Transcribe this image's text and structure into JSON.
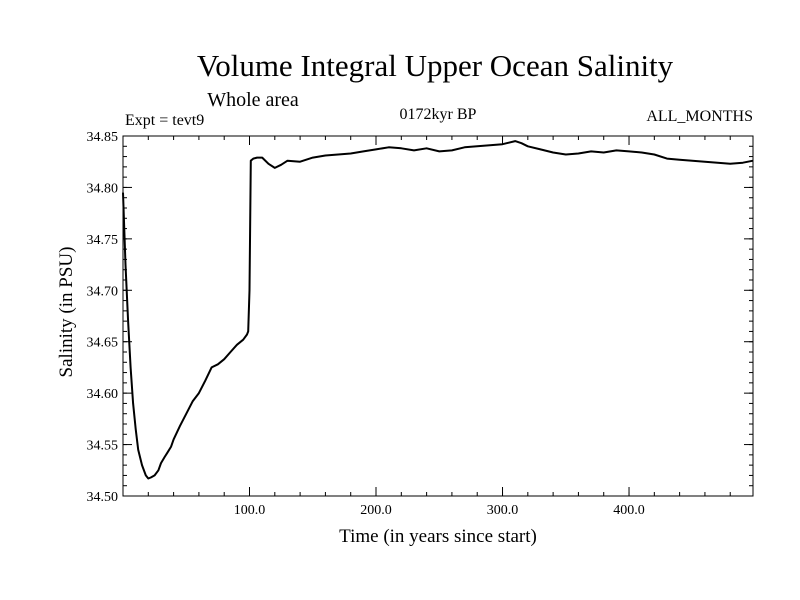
{
  "chart_data": {
    "type": "line",
    "title": "Volume Integral Upper Ocean Salinity",
    "subtitle": "Whole area",
    "annotations": {
      "left": "Expt = tevt9",
      "center": "0172kyr BP",
      "right": "ALL_MONTHS"
    },
    "xlabel": "Time (in years since start)",
    "ylabel": "Salinity (in PSU)",
    "xlim": [
      0,
      498
    ],
    "ylim": [
      34.5,
      34.85
    ],
    "x_ticks": [
      100,
      200,
      300,
      400
    ],
    "x_tick_labels": [
      "100.0",
      "200.0",
      "300.0",
      "400.0"
    ],
    "y_ticks": [
      34.5,
      34.55,
      34.6,
      34.65,
      34.7,
      34.75,
      34.8,
      34.85
    ],
    "y_tick_labels": [
      "34.50",
      "34.55",
      "34.60",
      "34.65",
      "34.70",
      "34.75",
      "34.80",
      "34.85"
    ],
    "grid": false,
    "series": [
      {
        "color": "#000000",
        "x": [
          0,
          2,
          4,
          6,
          8,
          10,
          12,
          15,
          18,
          20,
          22,
          25,
          28,
          30,
          33,
          35,
          38,
          40,
          45,
          50,
          55,
          60,
          65,
          70,
          75,
          80,
          85,
          90,
          95,
          98,
          99,
          100,
          101,
          103,
          106,
          110,
          115,
          120,
          125,
          130,
          140,
          150,
          160,
          170,
          180,
          190,
          200,
          210,
          220,
          230,
          240,
          250,
          260,
          270,
          280,
          290,
          300,
          310,
          315,
          320,
          330,
          340,
          350,
          360,
          370,
          380,
          390,
          400,
          410,
          420,
          430,
          440,
          450,
          460,
          470,
          480,
          490,
          498
        ],
        "y": [
          34.795,
          34.725,
          34.67,
          34.625,
          34.59,
          34.565,
          34.545,
          34.53,
          34.52,
          34.517,
          34.518,
          34.52,
          34.525,
          34.532,
          34.538,
          34.542,
          34.548,
          34.555,
          34.568,
          34.58,
          34.592,
          34.6,
          34.612,
          34.625,
          34.628,
          34.633,
          34.64,
          34.647,
          34.652,
          34.657,
          34.66,
          34.7,
          34.826,
          34.828,
          34.829,
          34.829,
          34.823,
          34.819,
          34.822,
          34.826,
          34.825,
          34.829,
          34.831,
          34.832,
          34.833,
          34.835,
          34.837,
          34.839,
          34.838,
          34.836,
          34.838,
          34.835,
          34.836,
          34.839,
          34.84,
          34.841,
          34.842,
          34.845,
          34.843,
          34.84,
          34.837,
          34.834,
          34.832,
          34.833,
          34.835,
          34.834,
          34.836,
          34.835,
          34.834,
          34.832,
          34.828,
          34.827,
          34.826,
          34.825,
          34.824,
          34.823,
          34.824,
          34.826
        ]
      }
    ]
  }
}
